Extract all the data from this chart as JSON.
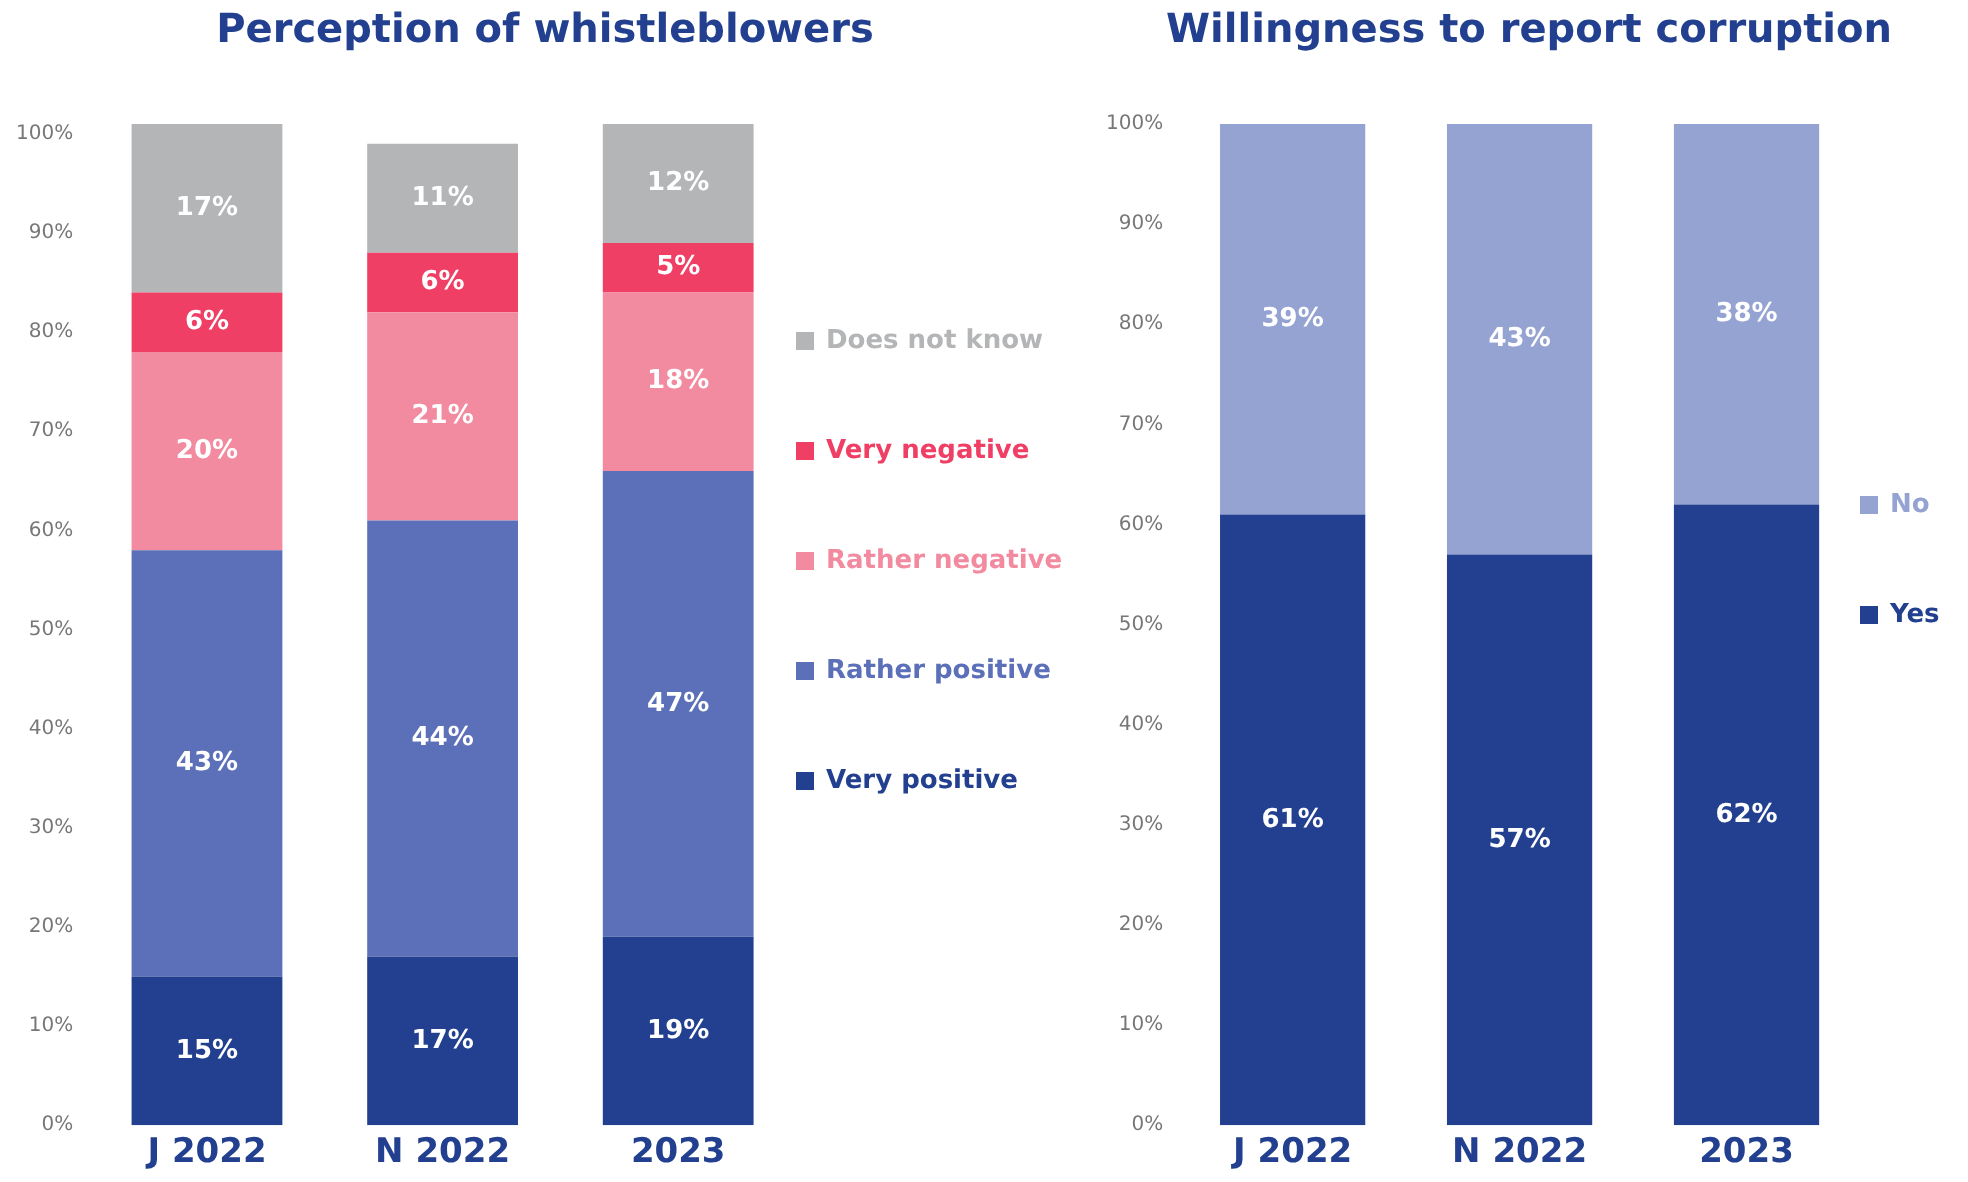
{
  "chart_data": [
    {
      "type": "bar",
      "title": "Perception of whistleblowers",
      "stacked": true,
      "categories": [
        "J 2022",
        "N 2022",
        "2023"
      ],
      "series": [
        {
          "name": "Very positive",
          "color": "#22408f",
          "values": [
            15,
            17,
            19
          ],
          "value_labels": [
            "15%",
            "17%",
            "19%"
          ]
        },
        {
          "name": "Rather positive",
          "color": "#5b70b8",
          "values": [
            43,
            44,
            47
          ],
          "value_labels": [
            "43%",
            "44%",
            "47%"
          ]
        },
        {
          "name": "Rather negative",
          "color": "#f28aa0",
          "values": [
            20,
            21,
            18
          ],
          "value_labels": [
            "20%",
            "21%",
            "18%"
          ]
        },
        {
          "name": "Very negative",
          "color": "#ef3f65",
          "values": [
            6,
            6,
            5
          ],
          "value_labels": [
            "6%",
            "6%",
            "5%"
          ]
        },
        {
          "name": "Does not know",
          "color": "#b3b5b7",
          "values": [
            17,
            11,
            12
          ],
          "value_labels": [
            "17%",
            "11%",
            "12%"
          ]
        }
      ],
      "ylim": [
        0,
        101
      ],
      "yticks": [
        {
          "value": 0,
          "label": "0%"
        },
        {
          "value": 10,
          "label": "10%"
        },
        {
          "value": 20,
          "label": "20%"
        },
        {
          "value": 30,
          "label": "30%"
        },
        {
          "value": 40,
          "label": "40%"
        },
        {
          "value": 50,
          "label": "50%"
        },
        {
          "value": 60,
          "label": "60%"
        },
        {
          "value": 70,
          "label": "70%"
        },
        {
          "value": 80,
          "label": "80%"
        },
        {
          "value": 90,
          "label": "90%"
        },
        {
          "value": 100,
          "label": "100%"
        }
      ],
      "grid": false,
      "legend": "right"
    },
    {
      "type": "bar",
      "title": "Willingness to report corruption",
      "stacked": true,
      "categories": [
        "J 2022",
        "N 2022",
        "2023"
      ],
      "series": [
        {
          "name": "Yes",
          "color": "#22408f",
          "values": [
            61,
            57,
            62
          ],
          "value_labels": [
            "61%",
            "57%",
            "62%"
          ]
        },
        {
          "name": "No",
          "color": "#95a3d3",
          "values": [
            39,
            43,
            38
          ],
          "value_labels": [
            "39%",
            "43%",
            "38%"
          ]
        }
      ],
      "ylim": [
        0,
        100
      ],
      "yticks": [
        {
          "value": 0,
          "label": "0%"
        },
        {
          "value": 10,
          "label": "10%"
        },
        {
          "value": 20,
          "label": "20%"
        },
        {
          "value": 30,
          "label": "30%"
        },
        {
          "value": 40,
          "label": "40%"
        },
        {
          "value": 50,
          "label": "50%"
        },
        {
          "value": 60,
          "label": "60%"
        },
        {
          "value": 70,
          "label": "70%"
        },
        {
          "value": 80,
          "label": "80%"
        },
        {
          "value": 90,
          "label": "90%"
        },
        {
          "value": 100,
          "label": "100%"
        }
      ],
      "grid": false,
      "legend": "right"
    }
  ]
}
